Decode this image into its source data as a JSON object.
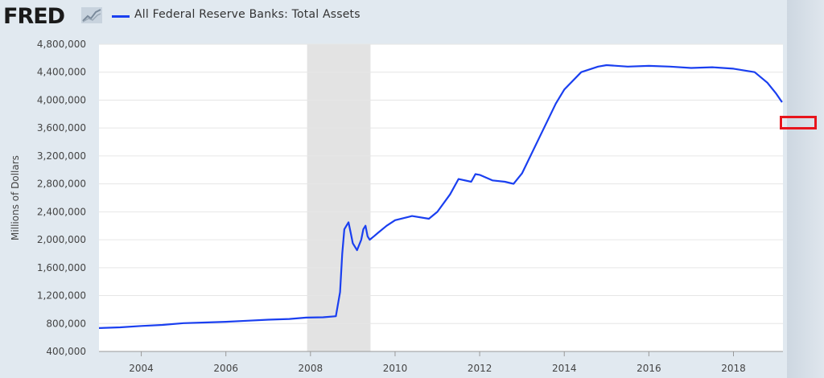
{
  "header": {
    "logo_text": "FRED",
    "logo_graph_icon": "fred-chart-icon",
    "series_color": "#1a3ff0"
  },
  "annotation": {
    "color": "#e8141c"
  },
  "chart_data": {
    "type": "line",
    "title": "All Federal Reserve Banks: Total Assets",
    "ylabel": "Millions of Dollars",
    "xlabel": "",
    "xlim": [
      2003.0,
      2019.17
    ],
    "ylim": [
      400000,
      4800000
    ],
    "x_ticks": [
      "2004",
      "2006",
      "2008",
      "2010",
      "2012",
      "2014",
      "2016",
      "2018"
    ],
    "y_ticks": [
      "400,000",
      "800,000",
      "1,200,000",
      "1,600,000",
      "2,000,000",
      "2,400,000",
      "2,800,000",
      "3,200,000",
      "3,600,000",
      "4,000,000",
      "4,400,000",
      "4,800,000"
    ],
    "grid": true,
    "recession_shading": [
      {
        "start": 2007.92,
        "end": 2009.42
      }
    ],
    "series": [
      {
        "name": "All Federal Reserve Banks: Total Assets",
        "color": "#1a3ff0",
        "x": [
          2003.0,
          2003.5,
          2004.0,
          2004.5,
          2005.0,
          2005.5,
          2006.0,
          2006.5,
          2007.0,
          2007.5,
          2007.9,
          2008.3,
          2008.6,
          2008.7,
          2008.75,
          2008.8,
          2008.85,
          2008.9,
          2008.95,
          2009.0,
          2009.1,
          2009.2,
          2009.25,
          2009.3,
          2009.35,
          2009.4,
          2009.5,
          2009.6,
          2009.8,
          2010.0,
          2010.4,
          2010.8,
          2011.0,
          2011.3,
          2011.5,
          2011.8,
          2011.9,
          2012.0,
          2012.3,
          2012.6,
          2012.8,
          2013.0,
          2013.4,
          2013.8,
          2014.0,
          2014.4,
          2014.8,
          2015.0,
          2015.5,
          2016.0,
          2016.5,
          2017.0,
          2017.5,
          2018.0,
          2018.5,
          2018.8,
          2019.0,
          2019.15
        ],
        "values": [
          735000,
          745000,
          765000,
          780000,
          805000,
          815000,
          825000,
          840000,
          855000,
          865000,
          885000,
          890000,
          905000,
          1250000,
          1800000,
          2150000,
          2200000,
          2250000,
          2100000,
          1950000,
          1850000,
          2000000,
          2150000,
          2200000,
          2050000,
          2000000,
          2050000,
          2100000,
          2200000,
          2280000,
          2340000,
          2300000,
          2400000,
          2650000,
          2870000,
          2830000,
          2940000,
          2930000,
          2850000,
          2830000,
          2800000,
          2950000,
          3450000,
          3950000,
          4150000,
          4400000,
          4480000,
          4500000,
          4480000,
          4490000,
          4480000,
          4460000,
          4470000,
          4450000,
          4400000,
          4250000,
          4100000,
          3970000
        ]
      }
    ]
  }
}
